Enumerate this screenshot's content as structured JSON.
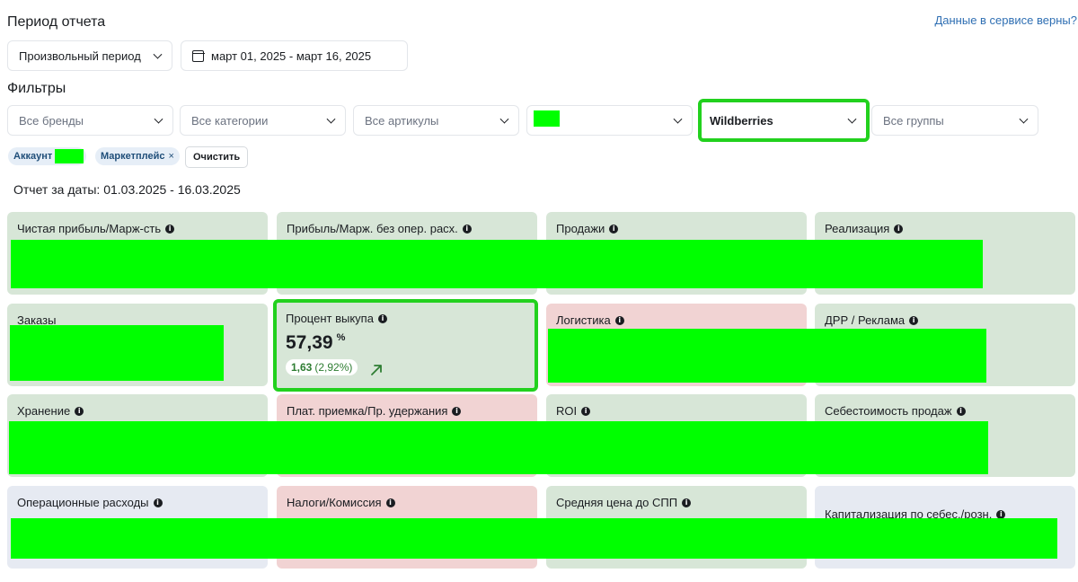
{
  "header": {
    "period_title": "Период отчета",
    "data_link": "Данные в сервисе верны?"
  },
  "period": {
    "mode_label": "Произвольный период",
    "date_range": "март 01, 2025 - март 16, 2025"
  },
  "filters": {
    "title": "Фильтры",
    "brands": "Все бренды",
    "categories": "Все категории",
    "articles": "Все артикулы",
    "marketplace": "Wildberries",
    "groups": "Все группы"
  },
  "chips": {
    "account": "Аккаунт :",
    "marketplace": "Маркетплейс",
    "marketplace_remove": "×",
    "clear": "Очистить"
  },
  "report": {
    "dates": "Отчет за даты: 01.03.2025 - 16.03.2025"
  },
  "cards": {
    "net_profit": "Чистая прибыль/Марж-сть",
    "profit_no_opex": "Прибыль/Марж. без опер. расх.",
    "sales": "Продажи",
    "realization": "Реализация",
    "orders": "Заказы",
    "buyout_percent": "Процент выкупа",
    "buyout_value": "57,39",
    "buyout_unit": "%",
    "buyout_delta": "1,63",
    "buyout_delta_pct": "(2,92%)",
    "logistics": "Логистика",
    "drr_ads": "ДРР / Реклама",
    "storage": "Хранение",
    "paid_acceptance": "Плат. приемка/Пр. удержания",
    "roi": "ROI",
    "cost_of_sales": "Себестоимость продаж",
    "opex": "Операционные расходы",
    "taxes": "Налоги/Комиссия",
    "avg_price": "Средняя цена до СПП",
    "capitalization": "Капитализация по себес./розн."
  },
  "colors": {
    "accent_highlight": "#22d11e",
    "redaction": "#00ff00",
    "card_green": "#d7e6d7",
    "card_red": "#f1d3d3",
    "card_blue": "#e6eaf2",
    "positive": "#2e7d32",
    "link": "#2f6fb3"
  },
  "icons": {
    "select_chevron": "chevron-down-icon",
    "calendar": "calendar-icon",
    "info": "info-icon",
    "trend": "arrow-up-right-icon"
  }
}
